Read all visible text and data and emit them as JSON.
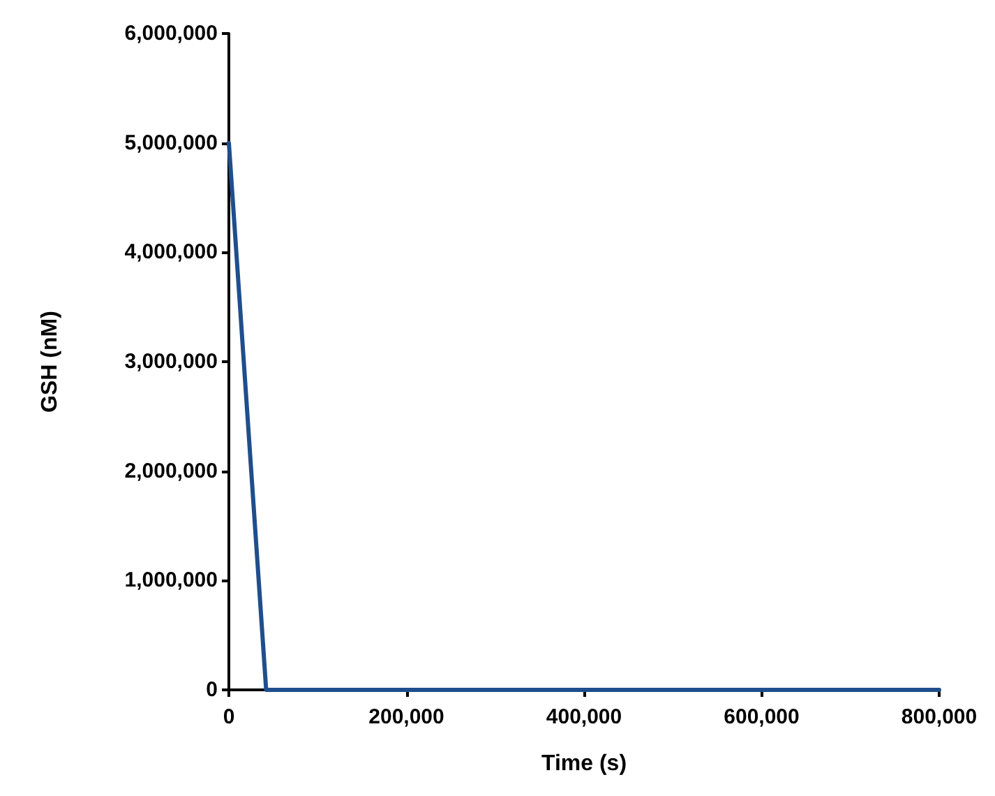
{
  "chart_data": {
    "type": "line",
    "xlabel": "Time (s)",
    "ylabel": "GSH (nM)",
    "x": [
      0,
      42000,
      800000
    ],
    "series": [
      {
        "color": "#1f4e8c",
        "values": [
          5000000,
          0,
          0
        ]
      }
    ],
    "xlim": [
      0,
      800000
    ],
    "xticks": [
      0,
      {
        "value": 200000,
        "label": "200,000"
      },
      {
        "value": 400000,
        "label": "400,000"
      },
      {
        "value": 600000,
        "label": "600,000"
      },
      {
        "value": 800000,
        "label": "800,000"
      }
    ],
    "ylim": [
      0,
      6000000
    ],
    "yticks": [
      0,
      {
        "value": 1000000,
        "label": "1,000,000"
      },
      {
        "value": 2000000,
        "label": "2,000,000"
      },
      {
        "value": 3000000,
        "label": "3,000,000"
      },
      {
        "value": 4000000,
        "label": "4,000,000"
      },
      {
        "value": 5000000,
        "label": "5,000,000"
      },
      {
        "value": 6000000,
        "label": "6,000,000"
      }
    ],
    "grid": false,
    "marker": "none",
    "line_style": "solid"
  }
}
